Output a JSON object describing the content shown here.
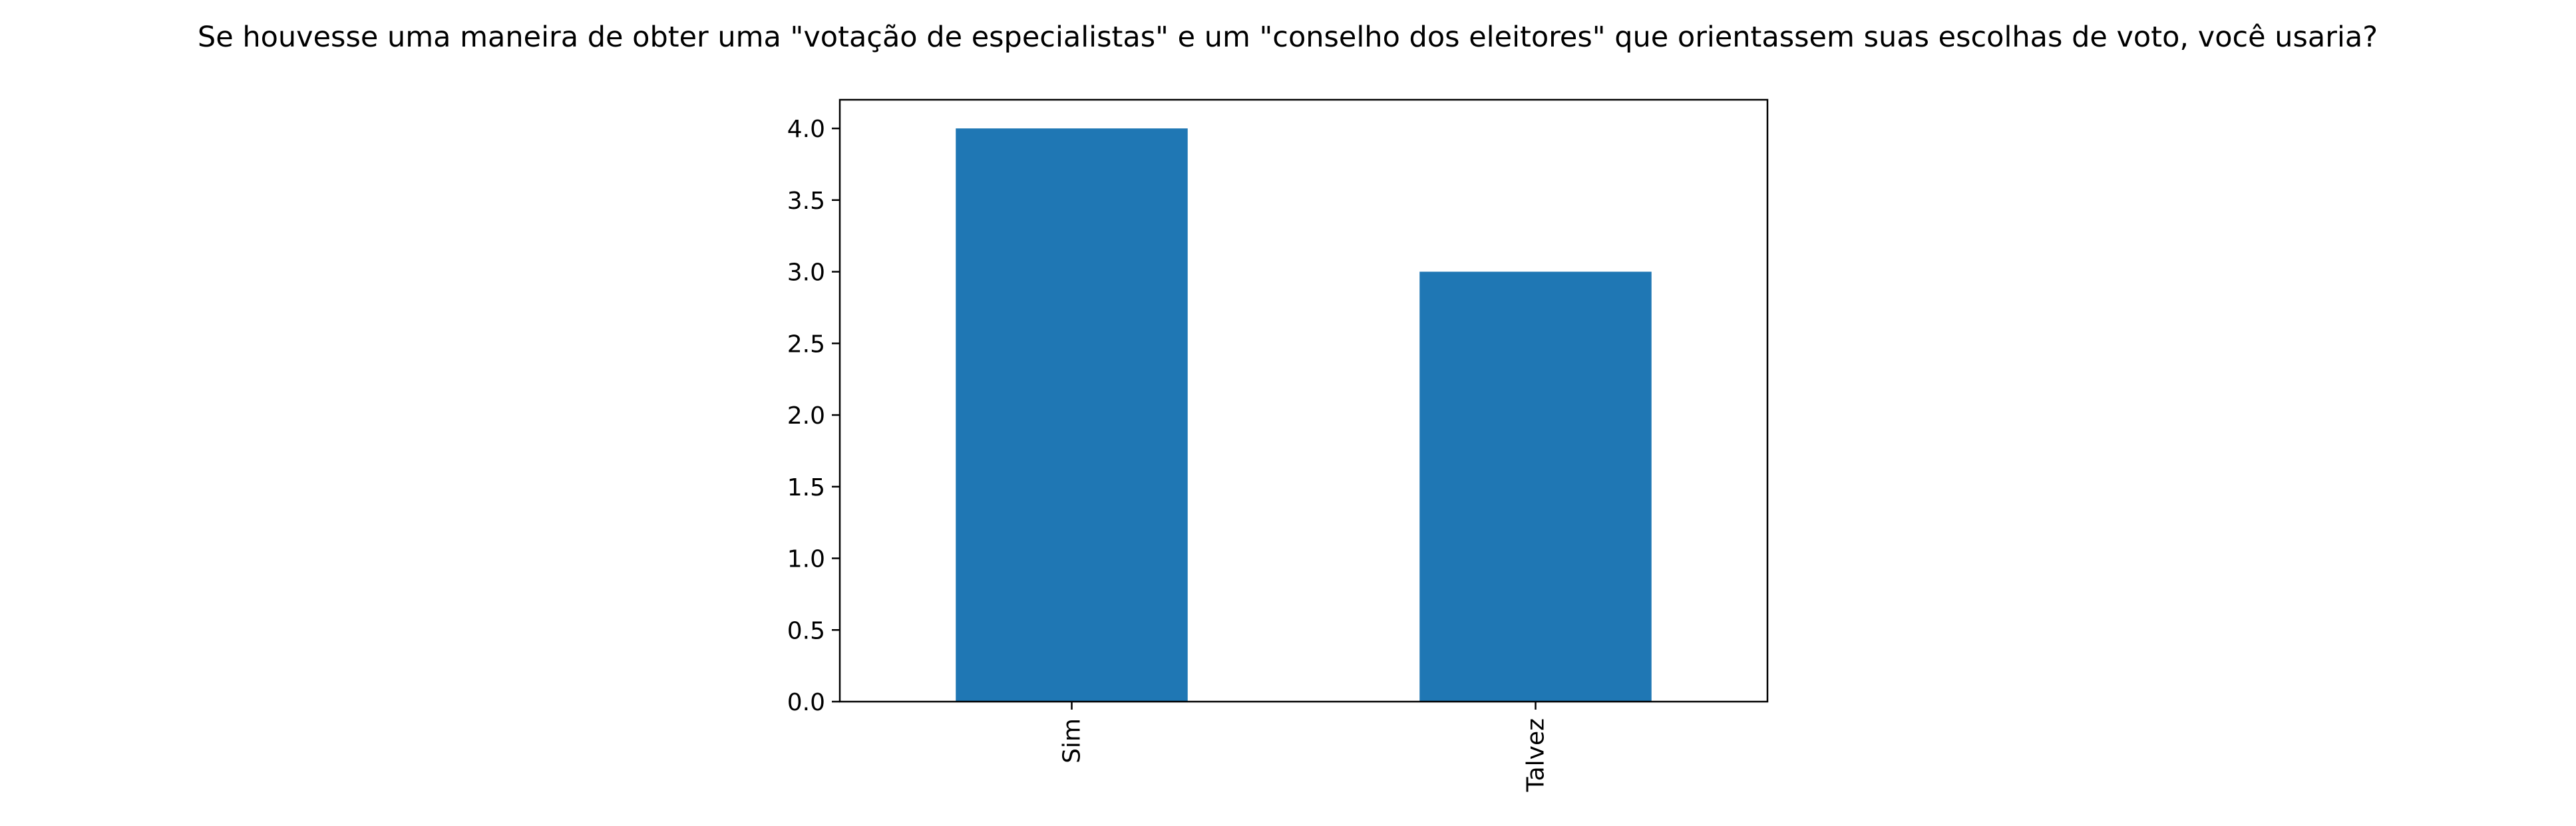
{
  "chart_data": {
    "type": "bar",
    "title": "Se houvesse uma maneira de obter uma \"votação de especialistas\" e um \"conselho dos eleitores\" que orientassem suas escolhas de voto, você usaria?",
    "categories": [
      "Sim",
      "Talvez"
    ],
    "values": [
      4,
      3
    ],
    "xlabel": "",
    "ylabel": "",
    "ylim": [
      0,
      4.2
    ],
    "yticks": [
      "0.0",
      "0.5",
      "1.0",
      "1.5",
      "2.0",
      "2.5",
      "3.0",
      "3.5",
      "4.0"
    ],
    "grid": false,
    "legend": "none",
    "bar_color": "#1f77b4"
  }
}
